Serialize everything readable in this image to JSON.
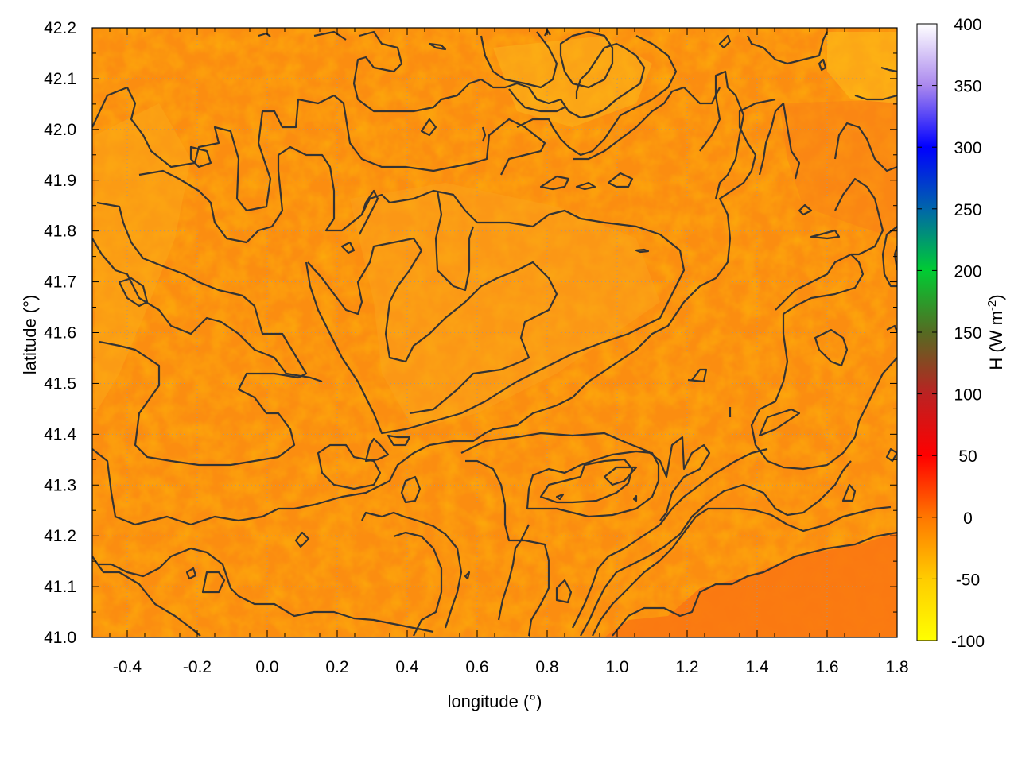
{
  "chart_data": {
    "type": "heatmap",
    "title": "",
    "xlabel": "longitude (°)",
    "ylabel": "latitude (°)",
    "xlim": [
      -0.5,
      1.8
    ],
    "ylim": [
      41.0,
      42.2
    ],
    "x_ticks": [
      "-0.4",
      "-0.2",
      "0.0",
      "0.2",
      "0.4",
      "0.6",
      "0.8",
      "1.0",
      "1.2",
      "1.4",
      "1.6",
      "1.8"
    ],
    "y_ticks": [
      "41.0",
      "41.1",
      "41.2",
      "41.3",
      "41.4",
      "41.5",
      "41.6",
      "41.7",
      "41.8",
      "41.9",
      "42.0",
      "42.1",
      "42.2"
    ],
    "grid": true,
    "colorbar": {
      "label_main": "H (W m",
      "label_sup": "-2",
      "label_close": ")",
      "range": [
        -100,
        400
      ],
      "ticks": [
        "400",
        "350",
        "300",
        "250",
        "200",
        "150",
        "100",
        "50",
        "0",
        "-50",
        "-100"
      ],
      "stops": [
        {
          "value": -100,
          "color": "#ffff00"
        },
        {
          "value": -50,
          "color": "#ffcc00"
        },
        {
          "value": 0,
          "color": "#ff7700"
        },
        {
          "value": 50,
          "color": "#ff0000"
        },
        {
          "value": 100,
          "color": "#bb2222"
        },
        {
          "value": 150,
          "color": "#556b22"
        },
        {
          "value": 200,
          "color": "#00cc33"
        },
        {
          "value": 250,
          "color": "#0066aa"
        },
        {
          "value": 300,
          "color": "#0000ff"
        },
        {
          "value": 350,
          "color": "#aa88ee"
        },
        {
          "value": 400,
          "color": "#ffffff"
        }
      ]
    },
    "field_description_values": {
      "typical_range": [
        -40,
        10
      ],
      "southeast_value": 8,
      "northwest_value": -30
    },
    "contour_color": "#333333"
  }
}
